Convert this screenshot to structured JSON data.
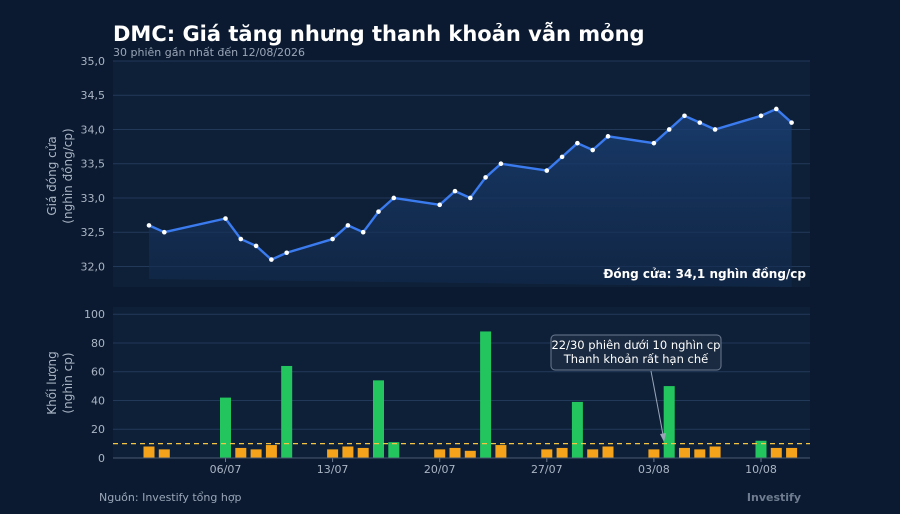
{
  "title": "DMC: Giá tăng nhưng thanh khoản vẫn mỏng",
  "subtitle": "30 phiên gần nhất đến 12/08/2026",
  "source": "Nguồn: Investify tổng hợp",
  "brand": "Investify",
  "colors": {
    "background": "#0b1a30",
    "line": "#3b7bf0",
    "area": "#15325c",
    "bar_up": "#22c55e",
    "bar_low": "#f5a31a",
    "threshold": "#f5c542"
  },
  "chart_data": [
    {
      "type": "line",
      "ylabel_lines": [
        "Giá đóng cửa",
        "(nghìn đồng/cp)"
      ],
      "ylim": [
        31.7,
        35.0
      ],
      "yticks": [
        32.0,
        32.5,
        33.0,
        33.5,
        34.0,
        34.5,
        35.0
      ],
      "ytick_labels": [
        "32,0",
        "32,5",
        "33,0",
        "33,5",
        "34,0",
        "34,5",
        "35,0"
      ],
      "x": [
        "01/07",
        "02/07",
        "06/07",
        "07/07",
        "08/07",
        "09/07",
        "10/07",
        "13/07",
        "14/07",
        "15/07",
        "16/07",
        "17/07",
        "20/07",
        "21/07",
        "22/07",
        "23/07",
        "24/07",
        "27/07",
        "28/07",
        "29/07",
        "30/07",
        "31/07",
        "03/08",
        "04/08",
        "05/08",
        "06/08",
        "07/08",
        "10/08",
        "11/08",
        "12/08"
      ],
      "values": [
        32.6,
        32.5,
        32.7,
        32.4,
        32.3,
        32.1,
        32.2,
        32.4,
        32.6,
        32.5,
        32.8,
        33.0,
        32.9,
        33.1,
        33.0,
        33.3,
        33.5,
        33.4,
        33.6,
        33.8,
        33.7,
        33.9,
        33.8,
        34.0,
        34.2,
        34.1,
        34.0,
        34.2,
        34.3,
        34.1
      ],
      "annotation": "Đóng cửa: 34,1 nghìn đồng/cp",
      "grid": true
    },
    {
      "type": "bar",
      "ylabel_lines": [
        "Khối lượng",
        "(nghìn cp)"
      ],
      "ylim": [
        0,
        105
      ],
      "yticks": [
        0,
        20,
        40,
        60,
        80,
        100
      ],
      "x": [
        "01/07",
        "02/07",
        "06/07",
        "07/07",
        "08/07",
        "09/07",
        "10/07",
        "13/07",
        "14/07",
        "15/07",
        "16/07",
        "17/07",
        "20/07",
        "21/07",
        "22/07",
        "23/07",
        "24/07",
        "27/07",
        "28/07",
        "29/07",
        "30/07",
        "31/07",
        "03/08",
        "04/08",
        "05/08",
        "06/08",
        "07/08",
        "10/08",
        "11/08",
        "12/08"
      ],
      "values": [
        8,
        6,
        42,
        7,
        6,
        9,
        64,
        6,
        8,
        7,
        54,
        11,
        6,
        7,
        5,
        88,
        9,
        6,
        7,
        39,
        6,
        8,
        6,
        50,
        7,
        6,
        8,
        12,
        7,
        7
      ],
      "threshold": 10,
      "xtick_labels": [
        "06/07",
        "13/07",
        "20/07",
        "27/07",
        "03/08",
        "10/08"
      ],
      "annotation_lines": [
        "22/30 phiên dưới 10 nghìn cp",
        "Thanh khoản rất hạn chế"
      ],
      "grid": true
    }
  ]
}
